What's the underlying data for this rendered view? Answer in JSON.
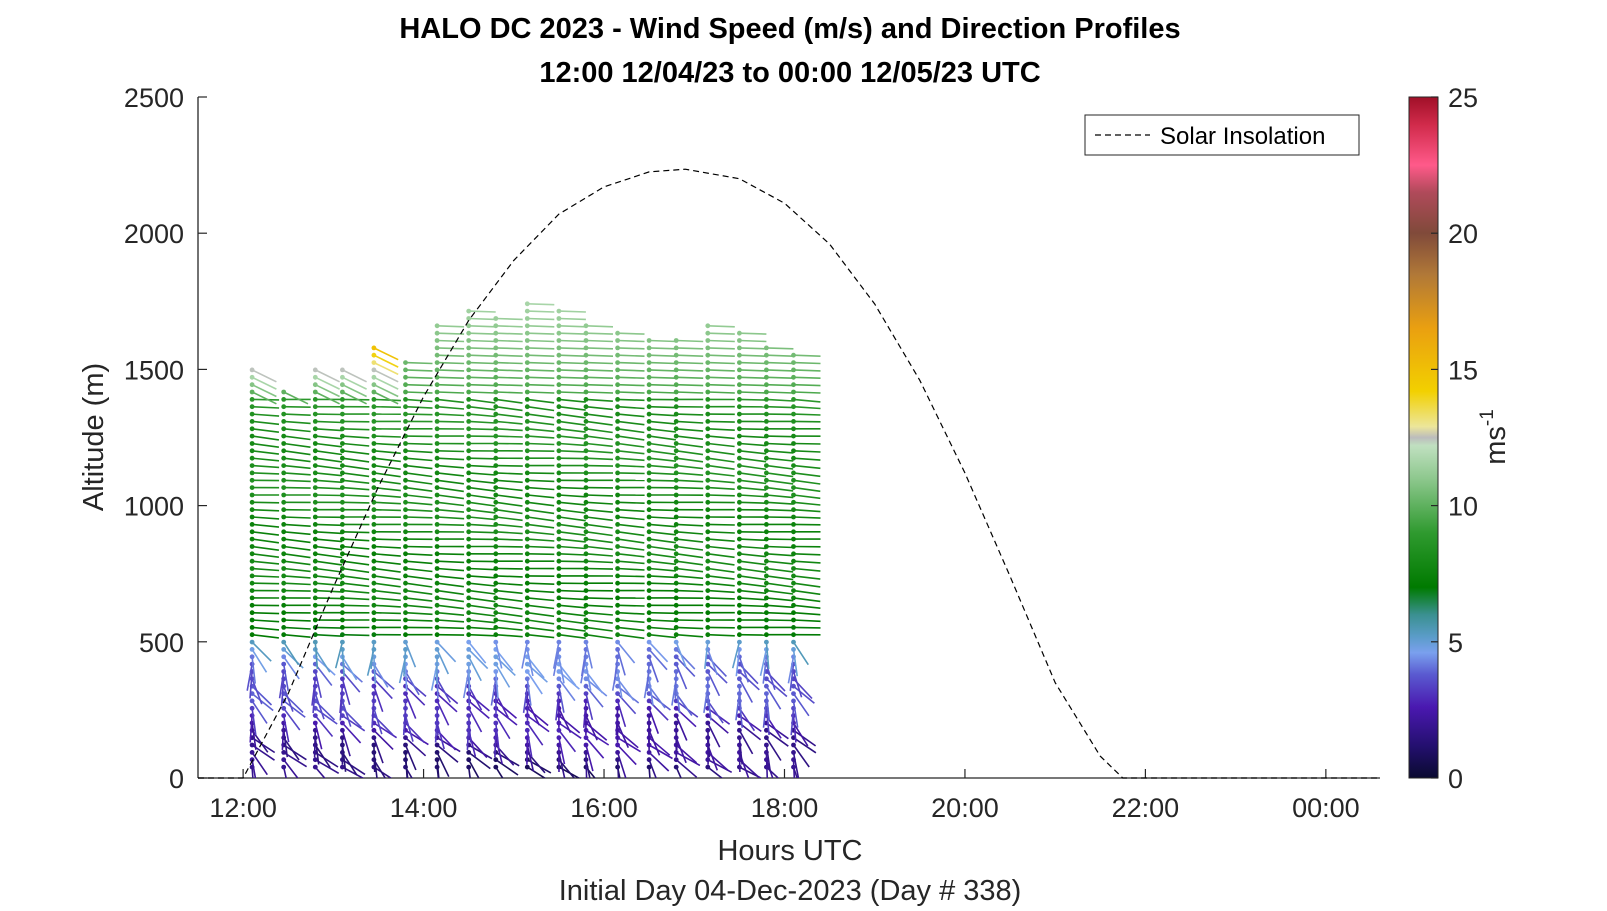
{
  "chart_data": {
    "type": "scatter",
    "subtype": "wind-barb profile plot",
    "title": "HALO DC 2023 - Wind Speed (m/s) and Direction Profiles",
    "subtitle": "12:00 12/04/23 to 00:00 12/05/23  UTC",
    "xlabel": "Hours UTC",
    "xlabel2": "Initial Day 04-Dec-2023 (Day # 338)",
    "ylabel": "Altitude (m)",
    "xlim": [
      11.5,
      24.6
    ],
    "ylim": [
      0,
      2500
    ],
    "x_ticks": [
      12,
      14,
      16,
      18,
      20,
      22,
      24
    ],
    "x_tick_labels": [
      "12:00",
      "14:00",
      "16:00",
      "18:00",
      "20:00",
      "22:00",
      "00:00"
    ],
    "y_ticks": [
      0,
      500,
      1000,
      1500,
      2000,
      2500
    ],
    "y_tick_labels": [
      "0",
      "500",
      "1000",
      "1500",
      "2000",
      "2500"
    ],
    "grid": false,
    "legend": {
      "position": "top-right",
      "entries": [
        "Solar Insolation"
      ]
    },
    "colorbar": {
      "label_base": "ms",
      "label_exp": "-1",
      "range": [
        0,
        25
      ],
      "ticks": [
        0,
        5,
        10,
        15,
        20,
        25
      ],
      "tick_labels": [
        "0",
        "5",
        "10",
        "15",
        "20",
        "25"
      ],
      "colors": [
        {
          "v": 0,
          "c": "#0a0a30"
        },
        {
          "v": 1.2,
          "c": "#241070"
        },
        {
          "v": 2.6,
          "c": "#4a18b0"
        },
        {
          "v": 3.8,
          "c": "#5a5ad0"
        },
        {
          "v": 4.6,
          "c": "#7aa0ee"
        },
        {
          "v": 5.2,
          "c": "#5a9cc8"
        },
        {
          "v": 6.0,
          "c": "#3a9090"
        },
        {
          "v": 7.0,
          "c": "#007a00"
        },
        {
          "v": 9.0,
          "c": "#2f9a2f"
        },
        {
          "v": 11.0,
          "c": "#8ec88e"
        },
        {
          "v": 12.2,
          "c": "#c0e0c0"
        },
        {
          "v": 12.5,
          "c": "#bcbcbc"
        },
        {
          "v": 12.9,
          "c": "#ece69a"
        },
        {
          "v": 14.2,
          "c": "#f2d000"
        },
        {
          "v": 16.5,
          "c": "#eaa010"
        },
        {
          "v": 18.5,
          "c": "#b07838"
        },
        {
          "v": 20.0,
          "c": "#804a3a"
        },
        {
          "v": 21.5,
          "c": "#b04a5a"
        },
        {
          "v": 22.5,
          "c": "#ff5a8a"
        },
        {
          "v": 24.0,
          "c": "#d02a4a"
        },
        {
          "v": 25,
          "c": "#a01028"
        }
      ]
    },
    "solar_insolation": {
      "style": "dashed",
      "color": "#000000",
      "x": [
        11.5,
        12.0,
        12.5,
        13.0,
        13.5,
        14.0,
        14.5,
        15.0,
        15.5,
        16.0,
        16.5,
        16.9,
        17.5,
        18.0,
        18.5,
        19.0,
        19.5,
        20.0,
        20.5,
        21.0,
        21.5,
        21.75,
        22.0,
        24.6
      ],
      "y": [
        0,
        0,
        310,
        700,
        1070,
        1400,
        1680,
        1900,
        2070,
        2170,
        2225,
        2235,
        2200,
        2110,
        1960,
        1740,
        1460,
        1120,
        740,
        350,
        80,
        0,
        0,
        0
      ]
    },
    "wind_profiles": {
      "times": [
        12.1,
        12.45,
        12.8,
        13.1,
        13.45,
        13.8,
        14.15,
        14.5,
        14.8,
        15.15,
        15.5,
        15.8,
        16.15,
        16.5,
        16.8,
        17.15,
        17.5,
        17.8,
        18.1
      ],
      "altitude_step_m": 27,
      "altitude_min_m": 40,
      "top_altitude_m": [
        1500,
        1420,
        1500,
        1500,
        1580,
        1540,
        1680,
        1720,
        1700,
        1760,
        1740,
        1660,
        1640,
        1620,
        1620,
        1680,
        1640,
        1590,
        1570
      ],
      "note": "Barbs are colored by wind speed (m/s); lower levels ~1-4 m/s from N, 500-1400 m ~7-9 m/s westerly, upper levels ~10-14 m/s."
    }
  }
}
